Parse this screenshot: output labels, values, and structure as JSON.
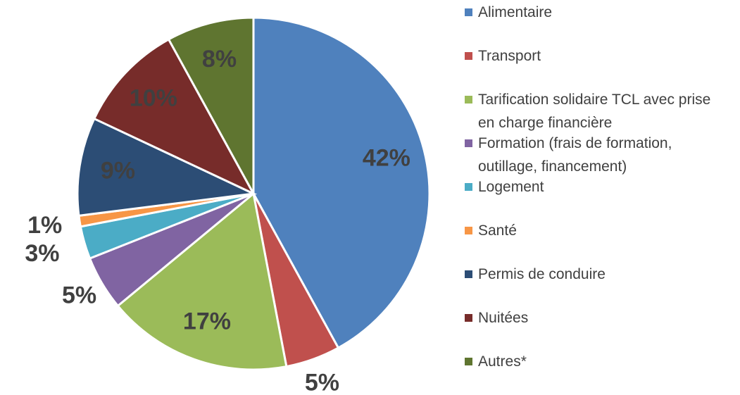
{
  "chart_data": {
    "type": "pie",
    "categories": [
      "Alimentaire",
      "Transport",
      "Tarification solidaire TCL avec prise en charge financière",
      "Formation (frais de formation, outillage, financement)",
      "Logement",
      "Santé",
      "Permis de conduire",
      "Nuitées",
      "Autres*"
    ],
    "values": [
      42,
      5,
      17,
      5,
      3,
      1,
      9,
      10,
      8
    ],
    "value_labels": [
      "42%",
      "5%",
      "17%",
      "5%",
      "3%",
      "1%",
      "9%",
      "10%",
      "8%"
    ],
    "colors": [
      "#4f81bd",
      "#c0504d",
      "#9bbb59",
      "#8064a2",
      "#4bacc6",
      "#f79646",
      "#2c4d75",
      "#772c2a",
      "#5f7530"
    ],
    "legend": "right"
  }
}
